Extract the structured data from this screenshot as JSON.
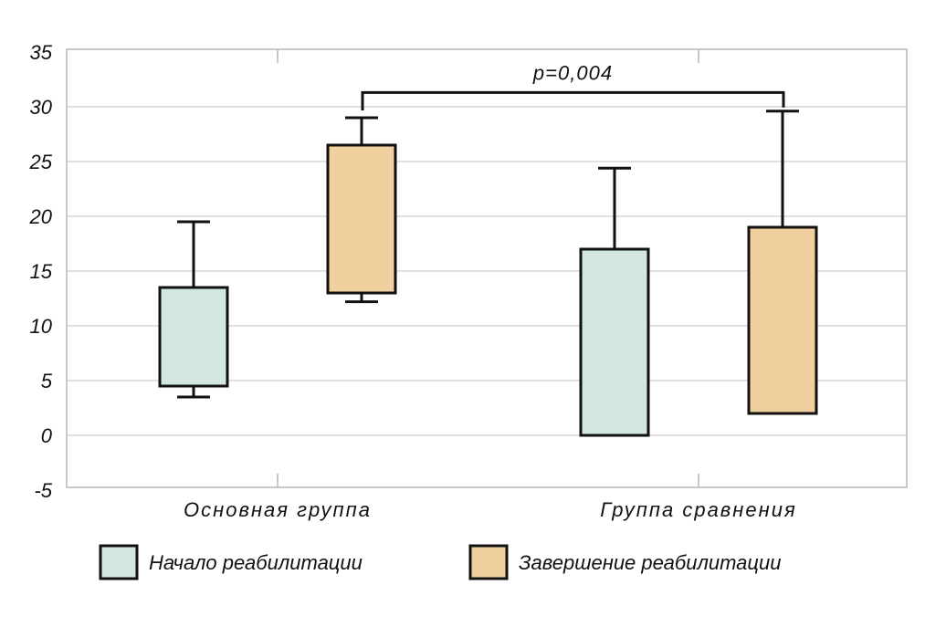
{
  "chart_data": {
    "type": "box",
    "title": "",
    "xlabel": "",
    "ylabel": "",
    "ylim": [
      -5,
      35
    ],
    "yticks": [
      -5,
      0,
      5,
      10,
      15,
      20,
      25,
      30,
      35
    ],
    "grid": "horizontal",
    "categories": [
      "Основная группа",
      "Группа сравнения"
    ],
    "legend_position": "bottom",
    "series": [
      {
        "name": "Начало реабилитации",
        "color": "#d3e6e0",
        "boxes": [
          {
            "q1": 4.5,
            "q3": 13.5,
            "min": 3.5,
            "max": 19.5
          },
          {
            "q1": 0,
            "q3": 17,
            "min": 0,
            "max": 24.4
          }
        ]
      },
      {
        "name": "Завершение реабилитации",
        "color": "#f1d09f",
        "boxes": [
          {
            "q1": 13,
            "q3": 26.5,
            "min": 12.2,
            "max": 29
          },
          {
            "q1": 2,
            "q3": 19,
            "min": 2,
            "max": 29.6
          }
        ]
      }
    ],
    "annotations": [
      {
        "text": "p=0,004",
        "from": "Основная группа / Завершение реабилитации",
        "to": "Группа сравнения / Завершение реабилитации",
        "level": 31.3
      }
    ]
  }
}
